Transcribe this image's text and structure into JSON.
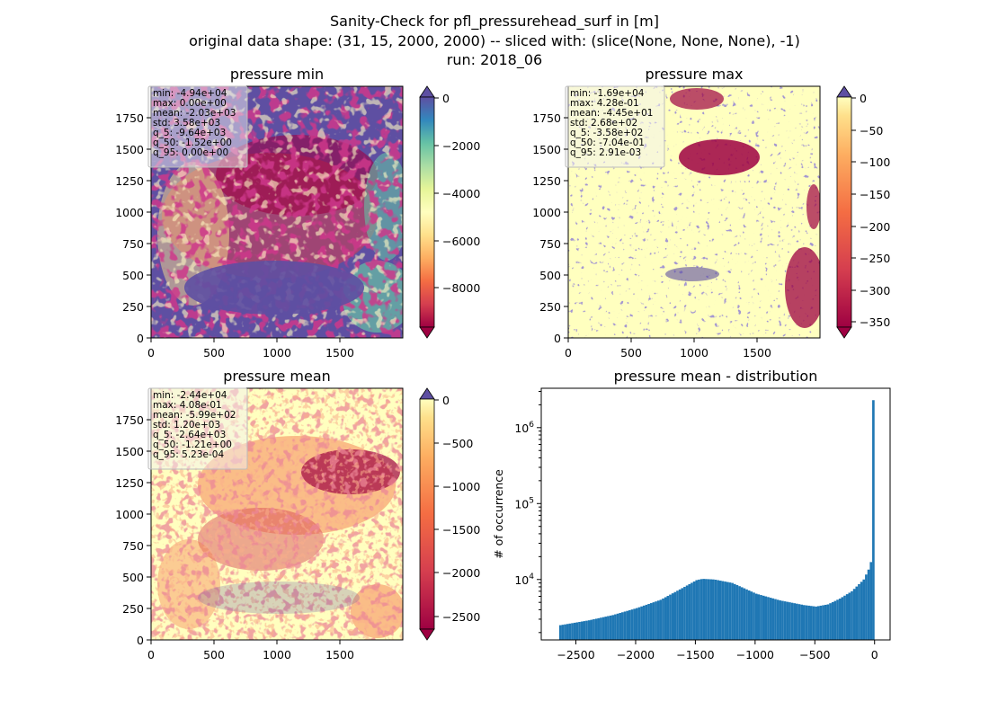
{
  "figure": {
    "suptitle_lines": [
      "Sanity-Check for pfl_pressurehead_surf in [m]",
      "original data shape: (31, 15, 2000, 2000) -- sliced with: (slice(None, None, None), -1)",
      "run: 2018_06"
    ]
  },
  "chart_data": [
    {
      "type": "heatmap",
      "title": "pressure min",
      "colormap": "Spectral",
      "x_ticks": [
        "0",
        "500",
        "1000",
        "1500"
      ],
      "y_ticks": [
        "0",
        "250",
        "500",
        "750",
        "1000",
        "1250",
        "1500",
        "1750"
      ],
      "xlim": [
        0,
        2000
      ],
      "ylim": [
        0,
        2000
      ],
      "colorbar": {
        "range": [
          -9640,
          0
        ],
        "extend": "both",
        "ticks": [
          "0",
          "−2000",
          "−4000",
          "−6000",
          "−8000"
        ]
      },
      "stats": [
        "min: -4.94e+04",
        "max: 0.00e+00",
        "mean: -2.03e+03",
        "std: 3.58e+03",
        "q_5: -9.64e+03",
        "q_50: -1.52e+00",
        "q_95: 0.00e+00"
      ]
    },
    {
      "type": "heatmap",
      "title": "pressure max",
      "colormap": "Spectral",
      "x_ticks": [
        "0",
        "500",
        "1000",
        "1500"
      ],
      "y_ticks": [
        "0",
        "250",
        "500",
        "750",
        "1000",
        "1250",
        "1500",
        "1750"
      ],
      "xlim": [
        0,
        2000
      ],
      "ylim": [
        0,
        2000
      ],
      "colorbar": {
        "range": [
          -358,
          0.00291
        ],
        "extend": "both",
        "ticks": [
          "0",
          "−50",
          "−100",
          "−150",
          "−200",
          "−250",
          "−300",
          "−350"
        ]
      },
      "stats": [
        "min: -1.69e+04",
        "max: 4.28e-01",
        "mean: -4.45e+01",
        "std: 2.68e+02",
        "q_5: -3.58e+02",
        "q_50: -7.04e-01",
        "q_95: 2.91e-03"
      ]
    },
    {
      "type": "heatmap",
      "title": "pressure mean",
      "colormap": "Spectral",
      "x_ticks": [
        "0",
        "500",
        "1000",
        "1500"
      ],
      "y_ticks": [
        "0",
        "250",
        "500",
        "750",
        "1000",
        "1250",
        "1500",
        "1750"
      ],
      "xlim": [
        0,
        2000
      ],
      "ylim": [
        0,
        2000
      ],
      "colorbar": {
        "range": [
          -2640,
          0.000523
        ],
        "extend": "both",
        "ticks": [
          "0",
          "−500",
          "−1000",
          "−1500",
          "−2000",
          "−2500"
        ]
      },
      "stats": [
        "min: -2.44e+04",
        "max: 4.08e-01",
        "mean: -5.99e+02",
        "std: 1.20e+03",
        "q_5: -2.64e+03",
        "q_50: -1.21e+00",
        "q_95: 5.23e-04"
      ]
    },
    {
      "type": "bar",
      "title": "pressure mean - distribution",
      "ylabel": "# of occurrence",
      "xlabel": "",
      "y_scale": "log",
      "color": "#1f77b4",
      "x_ticks": [
        -2500,
        -2000,
        -1500,
        -1000,
        -500,
        0
      ],
      "xlim": [
        -2790,
        130
      ],
      "ylim": [
        1600,
        3300000
      ],
      "y_ticks": [
        10000,
        100000,
        1000000
      ],
      "bin_width": 20,
      "bins": [
        [
          -2640,
          2500
        ],
        [
          -2400,
          2900
        ],
        [
          -2200,
          3400
        ],
        [
          -2000,
          4200
        ],
        [
          -1800,
          5400
        ],
        [
          -1600,
          8000
        ],
        [
          -1500,
          9800
        ],
        [
          -1450,
          10200
        ],
        [
          -1350,
          10000
        ],
        [
          -1200,
          9000
        ],
        [
          -1000,
          6500
        ],
        [
          -800,
          5300
        ],
        [
          -600,
          4600
        ],
        [
          -500,
          4400
        ],
        [
          -400,
          4700
        ],
        [
          -300,
          5600
        ],
        [
          -200,
          7000
        ],
        [
          -100,
          10000
        ],
        [
          -60,
          13500
        ],
        [
          -30,
          19000
        ],
        [
          -10,
          2300000
        ],
        [
          0,
          2300000
        ]
      ]
    }
  ]
}
